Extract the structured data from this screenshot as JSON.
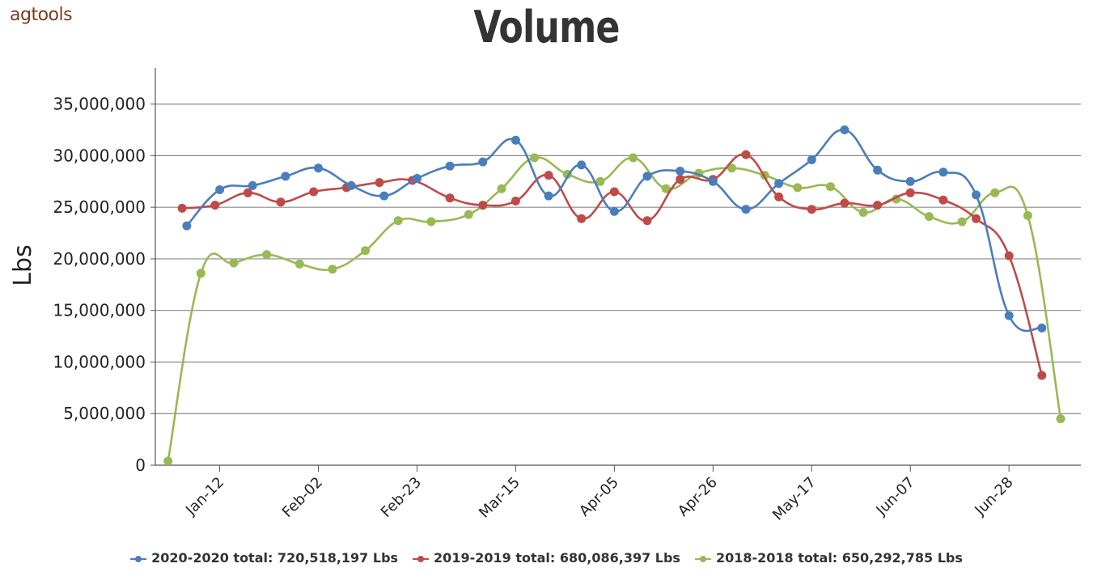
{
  "logo": {
    "text": "agtools"
  },
  "chart_data": {
    "type": "line",
    "title": "Volume",
    "ylabel": "Lbs",
    "xlabel": "",
    "ylim": [
      0,
      38500000
    ],
    "yticks": [
      0,
      5000000,
      10000000,
      15000000,
      20000000,
      25000000,
      30000000,
      35000000
    ],
    "ytick_labels": [
      "0",
      "5,000,000",
      "10,000,000",
      "15,000,000",
      "20,000,000",
      "25,000,000",
      "30,000,000",
      "35,000,000"
    ],
    "xtick_labels": [
      "Jan-12",
      "Feb-02",
      "Feb-23",
      "Mar-15",
      "Apr-05",
      "Apr-26",
      "May-17",
      "Jun-07",
      "Jun-28"
    ],
    "x_start": "Jan-01",
    "x_end": "Jul-12",
    "grid": "horizontal",
    "legend_position": "bottom",
    "series": [
      {
        "name": "2020-2020 total: 720,518,197 Lbs",
        "color": "#4a7ebb",
        "x": [
          "Jan-05",
          "Jan-12",
          "Jan-19",
          "Jan-26",
          "Feb-02",
          "Feb-09",
          "Feb-16",
          "Feb-23",
          "Mar-01",
          "Mar-08",
          "Mar-15",
          "Mar-22",
          "Mar-29",
          "Apr-05",
          "Apr-12",
          "Apr-19",
          "Apr-26",
          "May-03",
          "May-10",
          "May-17",
          "May-24",
          "May-31",
          "Jun-07",
          "Jun-14",
          "Jun-21",
          "Jun-28",
          "Jul-05"
        ],
        "y": [
          23200000,
          26700000,
          27100000,
          28000000,
          28800000,
          27100000,
          26100000,
          27800000,
          29000000,
          29400000,
          31500000,
          26100000,
          29100000,
          24600000,
          28000000,
          28500000,
          27500000,
          24800000,
          27300000,
          29600000,
          32500000,
          28600000,
          27500000,
          28400000,
          26200000,
          14500000,
          13300000
        ]
      },
      {
        "name": "2019-2019 total: 680,086,397 Lbs",
        "color": "#be4b48",
        "x": [
          "Jan-04",
          "Jan-11",
          "Jan-18",
          "Jan-25",
          "Feb-01",
          "Feb-08",
          "Feb-15",
          "Feb-22",
          "Mar-01",
          "Mar-08",
          "Mar-15",
          "Mar-22",
          "Mar-29",
          "Apr-05",
          "Apr-12",
          "Apr-19",
          "Apr-26",
          "May-03",
          "May-10",
          "May-17",
          "May-24",
          "May-31",
          "Jun-07",
          "Jun-14",
          "Jun-21",
          "Jun-28",
          "Jul-05"
        ],
        "y": [
          24900000,
          25200000,
          26400000,
          25500000,
          26500000,
          26900000,
          27400000,
          27600000,
          25900000,
          25200000,
          25600000,
          28100000,
          23900000,
          26500000,
          23700000,
          27700000,
          27700000,
          30100000,
          26000000,
          24800000,
          25400000,
          25200000,
          26400000,
          25700000,
          23900000,
          20300000,
          8700000
        ]
      },
      {
        "name": "2018-2018 total: 650,292,785 Lbs",
        "color": "#98b954",
        "x": [
          "Jan-01",
          "Jan-08",
          "Jan-15",
          "Jan-22",
          "Jan-29",
          "Feb-05",
          "Feb-12",
          "Feb-19",
          "Feb-26",
          "Mar-05",
          "Mar-12",
          "Mar-19",
          "Mar-26",
          "Apr-02",
          "Apr-09",
          "Apr-16",
          "Apr-23",
          "Apr-30",
          "May-07",
          "May-14",
          "May-21",
          "May-28",
          "Jun-04",
          "Jun-11",
          "Jun-18",
          "Jun-25",
          "Jul-02",
          "Jul-09"
        ],
        "y": [
          400000,
          18600000,
          19600000,
          20400000,
          19500000,
          19000000,
          20800000,
          23700000,
          23600000,
          24300000,
          26800000,
          29800000,
          28200000,
          27500000,
          29800000,
          26800000,
          28300000,
          28800000,
          28100000,
          26900000,
          27000000,
          24500000,
          25800000,
          24100000,
          23600000,
          26400000,
          24200000,
          4500000
        ]
      }
    ]
  }
}
